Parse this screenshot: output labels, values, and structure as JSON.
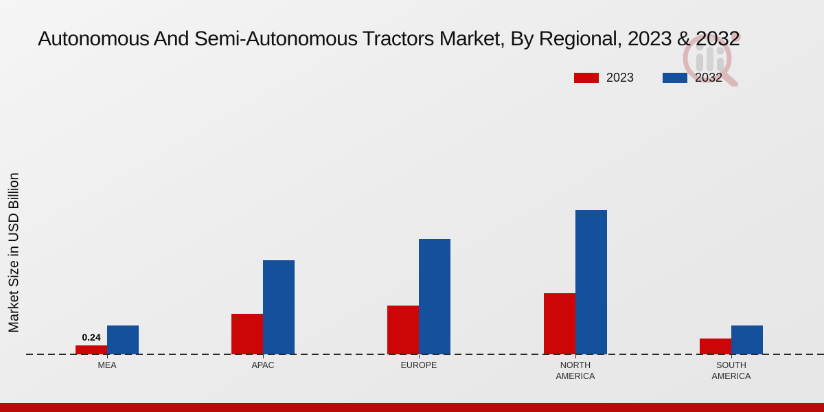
{
  "title": "Autonomous And Semi-Autonomous Tractors Market, By Regional, 2023 & 2032",
  "ylabel": "Market Size in USD Billion",
  "legend": [
    {
      "label": "2023",
      "color": "#cc0606"
    },
    {
      "label": "2032",
      "color": "#15509c"
    }
  ],
  "colors": {
    "bar_2023": "#cc0606",
    "bar_2032": "#15509c",
    "bottom_band": "#b90b0b",
    "baseline": "#2a2a2a",
    "background": "#ededed"
  },
  "watermark": {
    "name": "magnifier-bar-chart-logo"
  },
  "chart_data": {
    "type": "bar",
    "title": "Autonomous And Semi-Autonomous Tractors Market, By Regional, 2023 & 2032",
    "xlabel": "",
    "ylabel": "Market Size in USD Billion",
    "categories": [
      "MEA",
      "APAC",
      "EUROPE",
      "NORTH AMERICA",
      "SOUTH AMERICA"
    ],
    "series": [
      {
        "name": "2023",
        "color": "#cc0606",
        "values": [
          0.24,
          1.09,
          1.31,
          1.64,
          0.42
        ]
      },
      {
        "name": "2032",
        "color": "#15509c",
        "values": [
          0.78,
          2.53,
          3.1,
          3.88,
          0.78
        ]
      }
    ],
    "annotations": [
      {
        "series": "2023",
        "category": "MEA",
        "text": "0.24"
      }
    ],
    "ylim": [
      0,
      4.1
    ],
    "grid": false,
    "y_axis_ticks_visible": false,
    "legend_position": "top-right"
  }
}
